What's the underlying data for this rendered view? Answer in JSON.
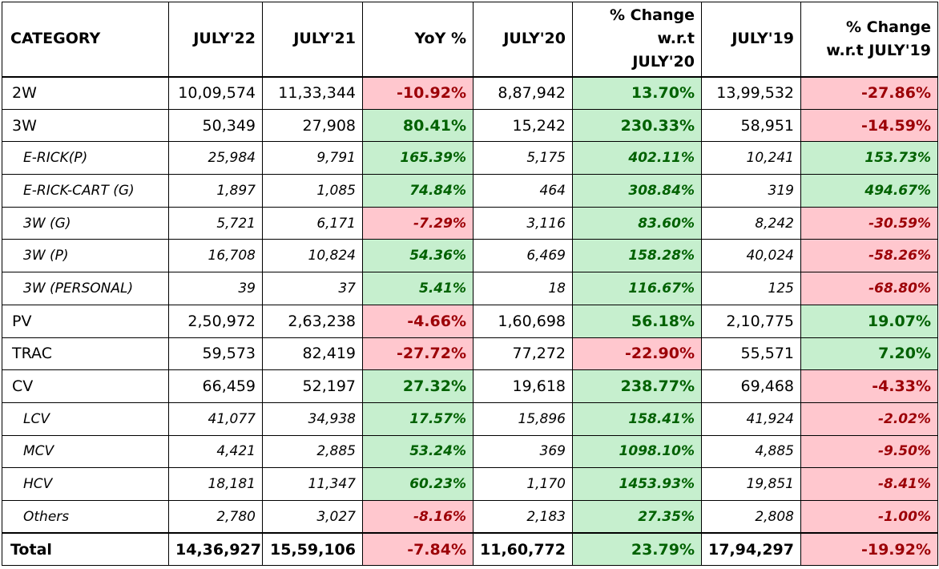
{
  "headers": {
    "category": "CATEGORY",
    "july22": "JULY'22",
    "july21": "JULY'21",
    "yoy": "YoY %",
    "july20": "JULY'20",
    "chg20_l1": "% Change",
    "chg20_l2": "w.r.t",
    "chg20_l3": "JULY'20",
    "july19": "JULY'19",
    "chg19_l1": "% Change",
    "chg19_l2": "w.r.t JULY'19"
  },
  "rows": [
    {
      "type": "main",
      "category": "2W",
      "july22": "10,09,574",
      "july21": "11,33,344",
      "yoy": "-10.92%",
      "july20": "8,87,942",
      "chg20": "13.70%",
      "july19": "13,99,532",
      "chg19": "-27.86%"
    },
    {
      "type": "main",
      "category": "3W",
      "july22": "50,349",
      "july21": "27,908",
      "yoy": "80.41%",
      "july20": "15,242",
      "chg20": "230.33%",
      "july19": "58,951",
      "chg19": "-14.59%"
    },
    {
      "type": "sub",
      "category": "E-RICK(P)",
      "july22": "25,984",
      "july21": "9,791",
      "yoy": "165.39%",
      "july20": "5,175",
      "chg20": "402.11%",
      "july19": "10,241",
      "chg19": "153.73%"
    },
    {
      "type": "sub",
      "category": "E-RICK-CART (G)",
      "july22": "1,897",
      "july21": "1,085",
      "yoy": "74.84%",
      "july20": "464",
      "chg20": "308.84%",
      "july19": "319",
      "chg19": "494.67%"
    },
    {
      "type": "sub",
      "category": "3W (G)",
      "july22": "5,721",
      "july21": "6,171",
      "yoy": "-7.29%",
      "july20": "3,116",
      "chg20": "83.60%",
      "july19": "8,242",
      "chg19": "-30.59%"
    },
    {
      "type": "sub",
      "category": "3W (P)",
      "july22": "16,708",
      "july21": "10,824",
      "yoy": "54.36%",
      "july20": "6,469",
      "chg20": "158.28%",
      "july19": "40,024",
      "chg19": "-58.26%"
    },
    {
      "type": "sub",
      "category": "3W (PERSONAL)",
      "july22": "39",
      "july21": "37",
      "yoy": "5.41%",
      "july20": "18",
      "chg20": "116.67%",
      "july19": "125",
      "chg19": "-68.80%"
    },
    {
      "type": "main",
      "category": "PV",
      "july22": "2,50,972",
      "july21": "2,63,238",
      "yoy": "-4.66%",
      "july20": "1,60,698",
      "chg20": "56.18%",
      "july19": "2,10,775",
      "chg19": "19.07%"
    },
    {
      "type": "main",
      "category": "TRAC",
      "july22": "59,573",
      "july21": "82,419",
      "yoy": "-27.72%",
      "july20": "77,272",
      "chg20": "-22.90%",
      "july19": "55,571",
      "chg19": "7.20%"
    },
    {
      "type": "main",
      "category": "CV",
      "july22": "66,459",
      "july21": "52,197",
      "yoy": "27.32%",
      "july20": "19,618",
      "chg20": "238.77%",
      "july19": "69,468",
      "chg19": "-4.33%"
    },
    {
      "type": "sub",
      "category": "LCV",
      "july22": "41,077",
      "july21": "34,938",
      "yoy": "17.57%",
      "july20": "15,896",
      "chg20": "158.41%",
      "july19": "41,924",
      "chg19": "-2.02%"
    },
    {
      "type": "sub",
      "category": "MCV",
      "july22": "4,421",
      "july21": "2,885",
      "yoy": "53.24%",
      "july20": "369",
      "chg20": "1098.10%",
      "july19": "4,885",
      "chg19": "-9.50%"
    },
    {
      "type": "sub",
      "category": "HCV",
      "july22": "18,181",
      "july21": "11,347",
      "yoy": "60.23%",
      "july20": "1,170",
      "chg20": "1453.93%",
      "july19": "19,851",
      "chg19": "-8.41%"
    },
    {
      "type": "sub",
      "category": "Others",
      "july22": "2,780",
      "july21": "3,027",
      "yoy": "-8.16%",
      "july20": "2,183",
      "chg20": "27.35%",
      "july19": "2,808",
      "chg19": "-1.00%"
    },
    {
      "type": "total",
      "category": "Total",
      "july22": "14,36,927",
      "july21": "15,59,106",
      "yoy": "-7.84%",
      "july20": "11,60,772",
      "chg20": "23.79%",
      "july19": "17,94,297",
      "chg19": "-19.92%"
    }
  ],
  "colors": {
    "positive_fill": "#c6efce",
    "positive_text": "#006100",
    "negative_fill": "#ffc7ce",
    "negative_text": "#9c0006"
  }
}
